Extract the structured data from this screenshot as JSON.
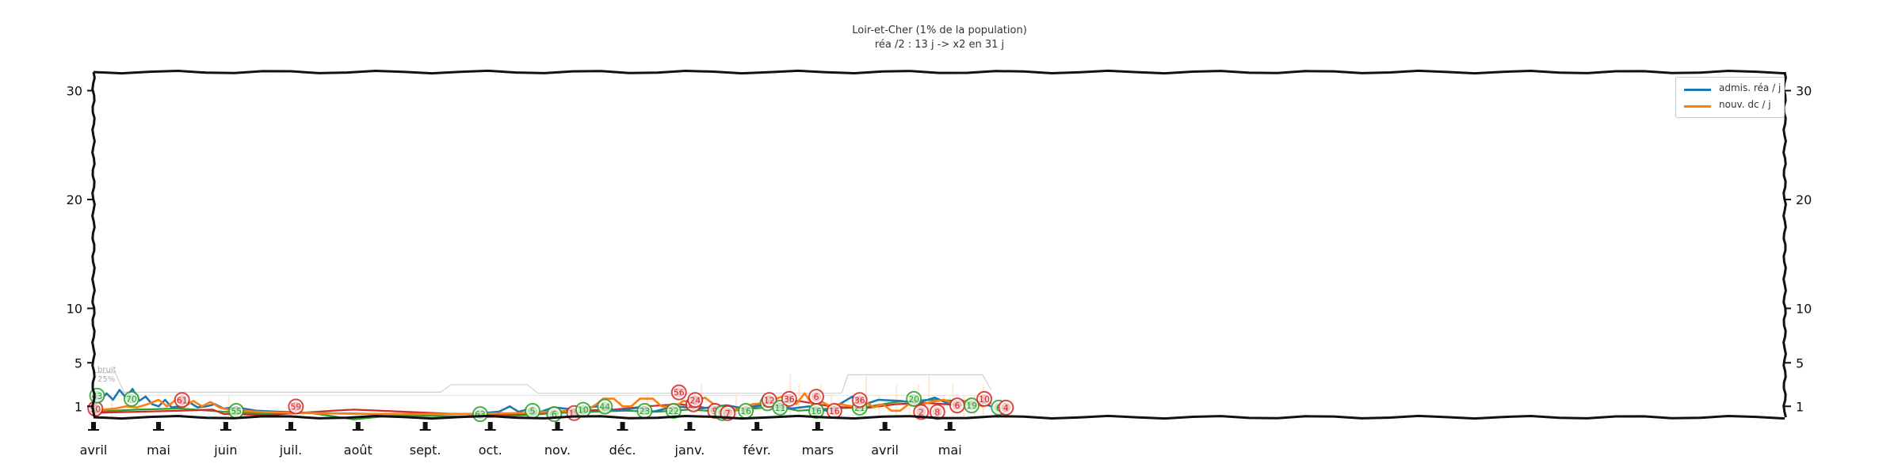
{
  "chart_data": {
    "type": "line",
    "title": "Loir-et-Cher (1% de la population)",
    "subtitle": "réa /2 : 13 j -> x2 en 31 j",
    "ylim": [
      0,
      32
    ],
    "y_ticks": [
      1,
      5,
      10,
      20,
      30
    ],
    "x_month_labels": [
      "avril",
      "mai",
      "juin",
      "juil.",
      "août",
      "sept.",
      "oct.",
      "nov.",
      "déc.",
      "janv.",
      "févr.",
      "mars",
      "avril",
      "mai"
    ],
    "noise_label": [
      "bruit",
      "25%"
    ],
    "grid": false,
    "legend_position": "top-right",
    "series": [
      {
        "name": "admis. réa / j",
        "color": "#1f77b4",
        "points": [
          [
            0,
            1.0
          ],
          [
            3,
            1.5
          ],
          [
            6,
            2.2
          ],
          [
            9,
            1.6
          ],
          [
            12,
            2.5
          ],
          [
            15,
            1.8
          ],
          [
            18,
            2.6
          ],
          [
            21,
            1.5
          ],
          [
            24,
            1.9
          ],
          [
            27,
            1.2
          ],
          [
            30,
            1.0
          ],
          [
            33,
            1.6
          ],
          [
            36,
            0.9
          ],
          [
            40,
            1.0
          ],
          [
            44,
            1.4
          ],
          [
            48,
            0.9
          ],
          [
            52,
            1.0
          ],
          [
            56,
            1.2
          ],
          [
            60,
            0.8
          ],
          [
            66,
            0.9
          ],
          [
            75,
            0.6
          ],
          [
            85,
            0.5
          ],
          [
            100,
            0.4
          ],
          [
            130,
            0.3
          ],
          [
            175,
            0.3
          ],
          [
            187,
            0.5
          ],
          [
            192,
            1.0
          ],
          [
            196,
            0.5
          ],
          [
            200,
            0.7
          ],
          [
            205,
            0.4
          ],
          [
            212,
            0.9
          ],
          [
            222,
            0.7
          ],
          [
            232,
            1.0
          ],
          [
            242,
            0.6
          ],
          [
            252,
            0.9
          ],
          [
            258,
            0.5
          ],
          [
            268,
            1.0
          ],
          [
            280,
            0.8
          ],
          [
            292,
            1.1
          ],
          [
            300,
            0.8
          ],
          [
            312,
            1.2
          ],
          [
            322,
            0.8
          ],
          [
            330,
            1.0
          ],
          [
            338,
            0.6
          ],
          [
            345,
            1.3
          ],
          [
            350,
            1.9
          ],
          [
            356,
            1.2
          ],
          [
            362,
            1.6
          ],
          [
            372,
            1.5
          ],
          [
            380,
            1.3
          ],
          [
            388,
            1.8
          ],
          [
            396,
            1.1
          ],
          [
            404,
            1.6
          ],
          [
            410,
            1.3
          ],
          [
            414,
            1.0
          ]
        ]
      },
      {
        "name": "nouv. dc / j",
        "color": "#ff7f0e",
        "points": [
          [
            0,
            0.5
          ],
          [
            5,
            0.7
          ],
          [
            10,
            0.8
          ],
          [
            15,
            1.0
          ],
          [
            20,
            0.9
          ],
          [
            25,
            1.2
          ],
          [
            30,
            1.6
          ],
          [
            34,
            1.0
          ],
          [
            38,
            1.6
          ],
          [
            42,
            1.0
          ],
          [
            46,
            1.5
          ],
          [
            50,
            1.0
          ],
          [
            54,
            1.4
          ],
          [
            58,
            0.9
          ],
          [
            62,
            0.7
          ],
          [
            68,
            0.6
          ],
          [
            75,
            0.5
          ],
          [
            90,
            0.4
          ],
          [
            130,
            0.3
          ],
          [
            175,
            0.3
          ],
          [
            200,
            0.4
          ],
          [
            210,
            0.5
          ],
          [
            220,
            0.6
          ],
          [
            228,
            0.7
          ],
          [
            232,
            1.2
          ],
          [
            235,
            1.7
          ],
          [
            240,
            1.7
          ],
          [
            244,
            1.0
          ],
          [
            248,
            1.0
          ],
          [
            252,
            1.7
          ],
          [
            258,
            1.7
          ],
          [
            262,
            1.0
          ],
          [
            268,
            0.9
          ],
          [
            272,
            1.5
          ],
          [
            276,
            1.4
          ],
          [
            282,
            1.8
          ],
          [
            286,
            1.2
          ],
          [
            292,
            0.8
          ],
          [
            298,
            0.7
          ],
          [
            304,
            1.2
          ],
          [
            310,
            1.3
          ],
          [
            316,
            1.8
          ],
          [
            320,
            2.0
          ],
          [
            324,
            1.2
          ],
          [
            328,
            2.2
          ],
          [
            332,
            1.0
          ],
          [
            336,
            1.4
          ],
          [
            340,
            1.0
          ],
          [
            344,
            1.2
          ],
          [
            350,
            1.0
          ],
          [
            356,
            1.4
          ],
          [
            360,
            0.9
          ],
          [
            364,
            1.2
          ],
          [
            368,
            0.6
          ],
          [
            372,
            0.6
          ],
          [
            376,
            1.2
          ],
          [
            380,
            1.0
          ],
          [
            386,
            1.4
          ],
          [
            392,
            1.6
          ],
          [
            398,
            1.2
          ],
          [
            404,
            1.6
          ],
          [
            410,
            1.0
          ],
          [
            414,
            1.4
          ]
        ]
      }
    ],
    "estimate_lines": [
      {
        "color": "#2ca02c",
        "points": [
          [
            0,
            0.5
          ],
          [
            20,
            0.7
          ],
          [
            40,
            0.8
          ],
          [
            60,
            0.5
          ],
          [
            80,
            0.3
          ],
          [
            100,
            0.4
          ],
          [
            120,
            -0.2
          ],
          [
            140,
            0.2
          ],
          [
            160,
            0.1
          ],
          [
            180,
            0.0
          ],
          [
            200,
            0.2
          ],
          [
            215,
            0.4
          ],
          [
            230,
            0.5
          ],
          [
            245,
            0.6
          ],
          [
            260,
            0.5
          ],
          [
            275,
            0.7
          ],
          [
            290,
            0.5
          ],
          [
            300,
            0.7
          ],
          [
            315,
            1.0
          ],
          [
            325,
            0.6
          ],
          [
            340,
            0.8
          ],
          [
            355,
            0.9
          ],
          [
            370,
            1.4
          ],
          [
            385,
            1.6
          ],
          [
            400,
            1.5
          ],
          [
            414,
            1.3
          ]
        ]
      },
      {
        "color": "#d62728",
        "points": [
          [
            0,
            0.4
          ],
          [
            20,
            0.5
          ],
          [
            40,
            0.6
          ],
          [
            55,
            0.7
          ],
          [
            60,
            0.3
          ],
          [
            80,
            0.2
          ],
          [
            95,
            0.4
          ],
          [
            110,
            0.6
          ],
          [
            120,
            0.7
          ],
          [
            180,
            0.2
          ],
          [
            200,
            0.3
          ],
          [
            220,
            0.6
          ],
          [
            240,
            0.7
          ],
          [
            255,
            1.0
          ],
          [
            270,
            1.2
          ],
          [
            285,
            0.8
          ],
          [
            295,
            0.7
          ],
          [
            310,
            1.2
          ],
          [
            325,
            1.5
          ],
          [
            340,
            1.0
          ],
          [
            355,
            0.8
          ],
          [
            370,
            1.2
          ],
          [
            385,
            1.3
          ],
          [
            400,
            1.1
          ],
          [
            414,
            1.4
          ]
        ]
      }
    ],
    "markers": [
      {
        "x": 1,
        "y": 0.2,
        "label": "50",
        "color": "#d62728"
      },
      {
        "x": 2,
        "y": 1.4,
        "label": "43",
        "color": "#2ca02c"
      },
      {
        "x": 21,
        "y": 1.1,
        "label": "70",
        "color": "#2ca02c"
      },
      {
        "x": 49,
        "y": 1.0,
        "label": "61",
        "color": "#d62728"
      },
      {
        "x": 79,
        "y": 0.0,
        "label": "55",
        "color": "#2ca02c"
      },
      {
        "x": 112,
        "y": 0.4,
        "label": "59",
        "color": "#d62728"
      },
      {
        "x": 214,
        "y": -0.3,
        "label": "63",
        "color": "#2ca02c"
      },
      {
        "x": 243,
        "y": 0.0,
        "label": "5",
        "color": "#2ca02c"
      },
      {
        "x": 255,
        "y": -0.3,
        "label": "6",
        "color": "#2ca02c"
      },
      {
        "x": 266,
        "y": -0.2,
        "label": "11",
        "color": "#d62728"
      },
      {
        "x": 271,
        "y": 0.1,
        "label": "10",
        "color": "#2ca02c"
      },
      {
        "x": 283,
        "y": 0.4,
        "label": "44",
        "color": "#2ca02c"
      },
      {
        "x": 305,
        "y": 0.0,
        "label": "23",
        "color": "#2ca02c"
      },
      {
        "x": 321,
        "y": 0.0,
        "label": "22",
        "color": "#2ca02c"
      },
      {
        "x": 324,
        "y": 1.7,
        "label": "56",
        "color": "#d62728"
      },
      {
        "x": 332,
        "y": 0.6,
        "label": "26",
        "color": "#d62728"
      },
      {
        "x": 333,
        "y": 1.0,
        "label": "24",
        "color": "#d62728"
      },
      {
        "x": 344,
        "y": 0.0,
        "label": "9",
        "color": "#d62728"
      },
      {
        "x": 348,
        "y": -0.2,
        "label": "8",
        "color": "#2ca02c"
      },
      {
        "x": 351,
        "y": -0.2,
        "label": "7",
        "color": "#d62728"
      },
      {
        "x": 361,
        "y": 0.0,
        "label": "16",
        "color": "#2ca02c"
      },
      {
        "x": 373,
        "y": 0.7,
        "label": "12",
        "color": "#2ca02c"
      },
      {
        "x": 374,
        "y": 1.0,
        "label": "12",
        "color": "#d62728"
      },
      {
        "x": 380,
        "y": 0.3,
        "label": "11",
        "color": "#2ca02c"
      },
      {
        "x": 385,
        "y": 1.1,
        "label": "36",
        "color": "#d62728"
      },
      {
        "x": 400,
        "y": 0.0,
        "label": "16",
        "color": "#2ca02c"
      },
      {
        "x": 400,
        "y": 1.3,
        "label": "6",
        "color": "#d62728"
      },
      {
        "x": 410,
        "y": 0.0,
        "label": "16",
        "color": "#d62728"
      },
      {
        "x": 424,
        "y": 0.3,
        "label": "21",
        "color": "#2ca02c"
      },
      {
        "x": 424,
        "y": 1.0,
        "label": "36",
        "color": "#d62728"
      },
      {
        "x": 454,
        "y": 1.1,
        "label": "20",
        "color": "#2ca02c"
      },
      {
        "x": 458,
        "y": -0.1,
        "label": "2",
        "color": "#d62728"
      },
      {
        "x": 467,
        "y": -0.1,
        "label": "8",
        "color": "#d62728"
      },
      {
        "x": 478,
        "y": 0.5,
        "label": "6",
        "color": "#d62728"
      },
      {
        "x": 486,
        "y": 0.5,
        "label": "19",
        "color": "#2ca02c"
      },
      {
        "x": 493,
        "y": 1.1,
        "label": "10",
        "color": "#d62728"
      },
      {
        "x": 501,
        "y": 0.3,
        "label": "6",
        "color": "#2ca02c"
      },
      {
        "x": 505,
        "y": 0.3,
        "label": "4",
        "color": "#d62728"
      }
    ]
  }
}
